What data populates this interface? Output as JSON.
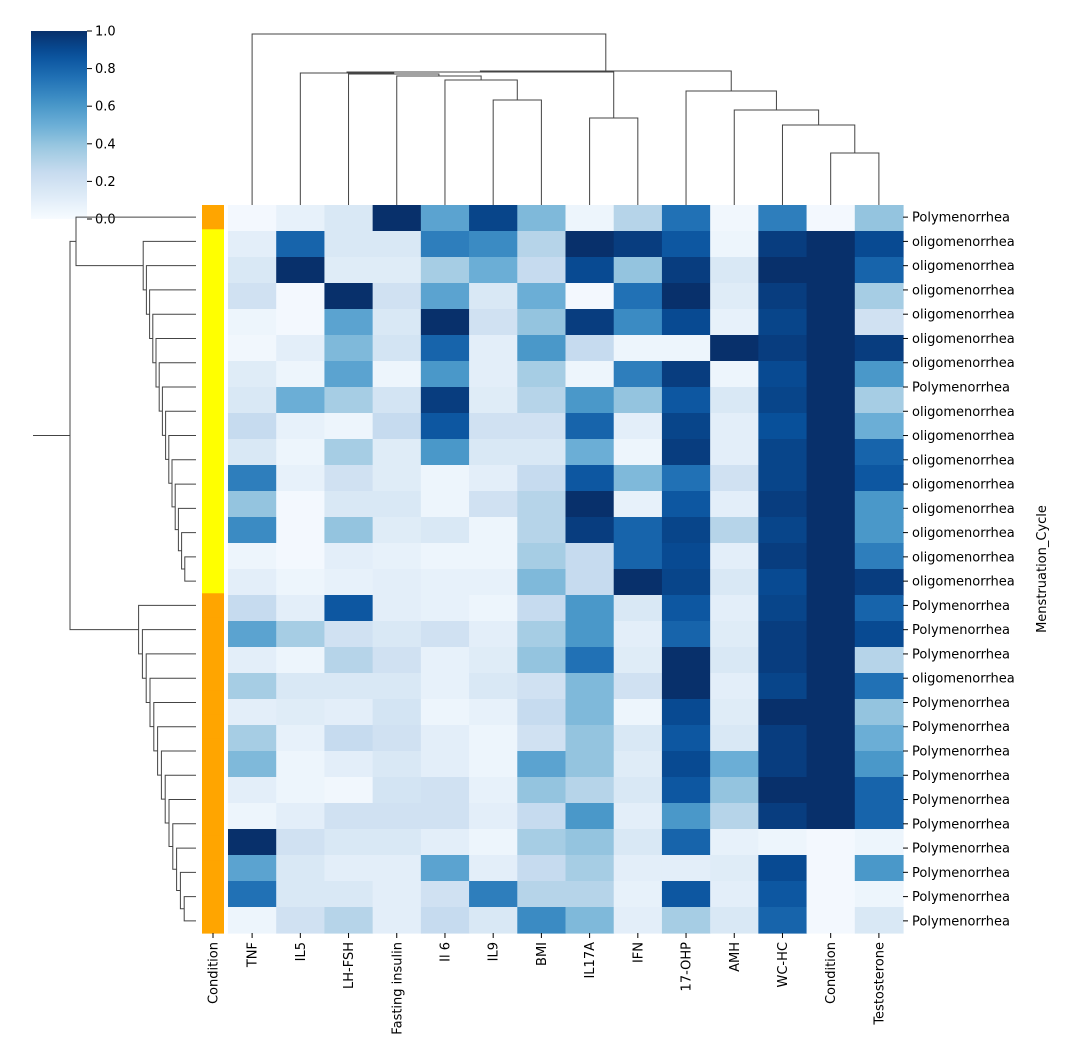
{
  "chart_data": {
    "type": "heatmap",
    "columns": [
      "TNF",
      "IL5",
      "LH-FSH",
      "Fasting insulin",
      "Il 6",
      "IL9",
      "BMI",
      "IL17A",
      "IFN",
      "17-OHP",
      "AMH",
      "WC-HC",
      "Condition",
      "Testosterone"
    ],
    "row_color_label": "Condition",
    "row_axis_label": "Menstruation_Cycle",
    "colorbar": {
      "ticks": [
        "0.0",
        "0.2",
        "0.4",
        "0.6",
        "0.8",
        "1.0"
      ],
      "range": [
        0,
        1
      ],
      "colormap": "Blues"
    },
    "row_label_values": [
      "Polymenorrhea",
      "oligomenorrhea",
      "oligomenorrhea",
      "oligomenorrhea",
      "oligomenorrhea",
      "oligomenorrhea",
      "oligomenorrhea",
      "Polymenorrhea",
      "oligomenorrhea",
      "oligomenorrhea",
      "oligomenorrhea",
      "oligomenorrhea",
      "oligomenorrhea",
      "oligomenorrhea",
      "oligomenorrhea",
      "oligomenorrhea",
      "Polymenorrhea",
      "Polymenorrhea",
      "Polymenorrhea",
      "oligomenorrhea",
      "Polymenorrhea",
      "Polymenorrhea",
      "Polymenorrhea",
      "Polymenorrhea",
      "Polymenorrhea",
      "Polymenorrhea",
      "Polymenorrhea",
      "Polymenorrhea",
      "Polymenorrhea",
      "Polymenorrhea"
    ],
    "condition_colors": [
      "#FFA500",
      "#FFFF00",
      "#FFFF00",
      "#FFFF00",
      "#FFFF00",
      "#FFFF00",
      "#FFFF00",
      "#FFFF00",
      "#FFFF00",
      "#FFFF00",
      "#FFFF00",
      "#FFFF00",
      "#FFFF00",
      "#FFFF00",
      "#FFFF00",
      "#FFFF00",
      "#FFA500",
      "#FFA500",
      "#FFA500",
      "#FFA500",
      "#FFA500",
      "#FFA500",
      "#FFA500",
      "#FFA500",
      "#FFA500",
      "#FFA500",
      "#FFA500",
      "#FFA500",
      "#FFA500",
      "#FFA500"
    ],
    "matrix": [
      [
        0.02,
        0.08,
        0.15,
        1.0,
        0.55,
        0.92,
        0.45,
        0.05,
        0.3,
        0.75,
        0.03,
        0.7,
        0.02,
        0.4
      ],
      [
        0.1,
        0.8,
        0.15,
        0.15,
        0.7,
        0.65,
        0.3,
        1.0,
        0.95,
        0.85,
        0.05,
        0.95,
        1.0,
        0.9
      ],
      [
        0.15,
        1.0,
        0.12,
        0.12,
        0.35,
        0.5,
        0.25,
        0.9,
        0.4,
        0.95,
        0.15,
        1.0,
        1.0,
        0.8
      ],
      [
        0.2,
        0.02,
        1.0,
        0.2,
        0.55,
        0.15,
        0.5,
        0.02,
        0.75,
        1.0,
        0.12,
        0.95,
        1.0,
        0.35
      ],
      [
        0.05,
        0.02,
        0.55,
        0.15,
        1.0,
        0.2,
        0.4,
        0.95,
        0.65,
        0.9,
        0.08,
        0.92,
        1.0,
        0.2
      ],
      [
        0.03,
        0.1,
        0.45,
        0.18,
        0.8,
        0.1,
        0.6,
        0.25,
        0.05,
        0.05,
        1.0,
        0.95,
        1.0,
        0.95
      ],
      [
        0.12,
        0.05,
        0.55,
        0.05,
        0.6,
        0.1,
        0.35,
        0.05,
        0.7,
        0.95,
        0.05,
        0.9,
        1.0,
        0.6
      ],
      [
        0.15,
        0.5,
        0.35,
        0.18,
        0.95,
        0.12,
        0.3,
        0.6,
        0.4,
        0.85,
        0.15,
        0.92,
        1.0,
        0.35
      ],
      [
        0.25,
        0.08,
        0.05,
        0.25,
        0.85,
        0.2,
        0.2,
        0.8,
        0.1,
        0.92,
        0.1,
        0.88,
        1.0,
        0.5
      ],
      [
        0.15,
        0.05,
        0.35,
        0.12,
        0.6,
        0.15,
        0.15,
        0.5,
        0.05,
        0.95,
        0.1,
        0.92,
        1.0,
        0.8
      ],
      [
        0.7,
        0.08,
        0.2,
        0.12,
        0.05,
        0.1,
        0.25,
        0.85,
        0.45,
        0.75,
        0.2,
        0.92,
        1.0,
        0.85
      ],
      [
        0.4,
        0.02,
        0.15,
        0.15,
        0.05,
        0.2,
        0.3,
        1.0,
        0.08,
        0.85,
        0.1,
        0.95,
        1.0,
        0.6
      ],
      [
        0.65,
        0.02,
        0.4,
        0.12,
        0.15,
        0.05,
        0.3,
        0.95,
        0.8,
        0.92,
        0.3,
        0.92,
        1.0,
        0.6
      ],
      [
        0.05,
        0.02,
        0.1,
        0.08,
        0.05,
        0.05,
        0.35,
        0.25,
        0.8,
        0.9,
        0.1,
        0.95,
        1.0,
        0.7
      ],
      [
        0.1,
        0.05,
        0.08,
        0.1,
        0.08,
        0.08,
        0.45,
        0.25,
        1.0,
        0.92,
        0.15,
        0.9,
        1.0,
        0.95
      ],
      [
        0.25,
        0.1,
        0.85,
        0.1,
        0.08,
        0.05,
        0.25,
        0.6,
        0.15,
        0.85,
        0.1,
        0.92,
        1.0,
        0.8
      ],
      [
        0.55,
        0.35,
        0.2,
        0.15,
        0.2,
        0.1,
        0.35,
        0.6,
        0.1,
        0.8,
        0.12,
        0.95,
        1.0,
        0.9
      ],
      [
        0.1,
        0.05,
        0.3,
        0.2,
        0.08,
        0.12,
        0.4,
        0.75,
        0.12,
        1.0,
        0.15,
        0.95,
        1.0,
        0.3
      ],
      [
        0.35,
        0.15,
        0.15,
        0.15,
        0.08,
        0.15,
        0.2,
        0.45,
        0.2,
        1.0,
        0.1,
        0.92,
        1.0,
        0.75
      ],
      [
        0.1,
        0.12,
        0.1,
        0.18,
        0.05,
        0.08,
        0.25,
        0.45,
        0.05,
        0.9,
        0.12,
        1.0,
        1.0,
        0.4
      ],
      [
        0.35,
        0.08,
        0.25,
        0.2,
        0.1,
        0.05,
        0.2,
        0.4,
        0.15,
        0.85,
        0.15,
        0.95,
        1.0,
        0.5
      ],
      [
        0.45,
        0.05,
        0.1,
        0.15,
        0.1,
        0.05,
        0.55,
        0.4,
        0.12,
        0.9,
        0.5,
        0.95,
        1.0,
        0.6
      ],
      [
        0.1,
        0.05,
        0.03,
        0.18,
        0.2,
        0.08,
        0.4,
        0.3,
        0.15,
        0.85,
        0.4,
        1.0,
        1.0,
        0.8
      ],
      [
        0.05,
        0.1,
        0.2,
        0.2,
        0.2,
        0.1,
        0.25,
        0.6,
        0.1,
        0.6,
        0.3,
        0.95,
        1.0,
        0.8
      ],
      [
        1.0,
        0.2,
        0.15,
        0.15,
        0.1,
        0.05,
        0.35,
        0.4,
        0.15,
        0.8,
        0.08,
        0.05,
        0.02,
        0.05
      ],
      [
        0.55,
        0.15,
        0.1,
        0.1,
        0.55,
        0.1,
        0.25,
        0.35,
        0.1,
        0.1,
        0.12,
        0.9,
        0.02,
        0.6
      ],
      [
        0.75,
        0.15,
        0.15,
        0.1,
        0.2,
        0.7,
        0.3,
        0.3,
        0.08,
        0.85,
        0.1,
        0.85,
        0.02,
        0.05
      ],
      [
        0.05,
        0.2,
        0.3,
        0.1,
        0.25,
        0.15,
        0.65,
        0.45,
        0.1,
        0.35,
        0.15,
        0.8,
        0.02,
        0.15
      ]
    ]
  }
}
